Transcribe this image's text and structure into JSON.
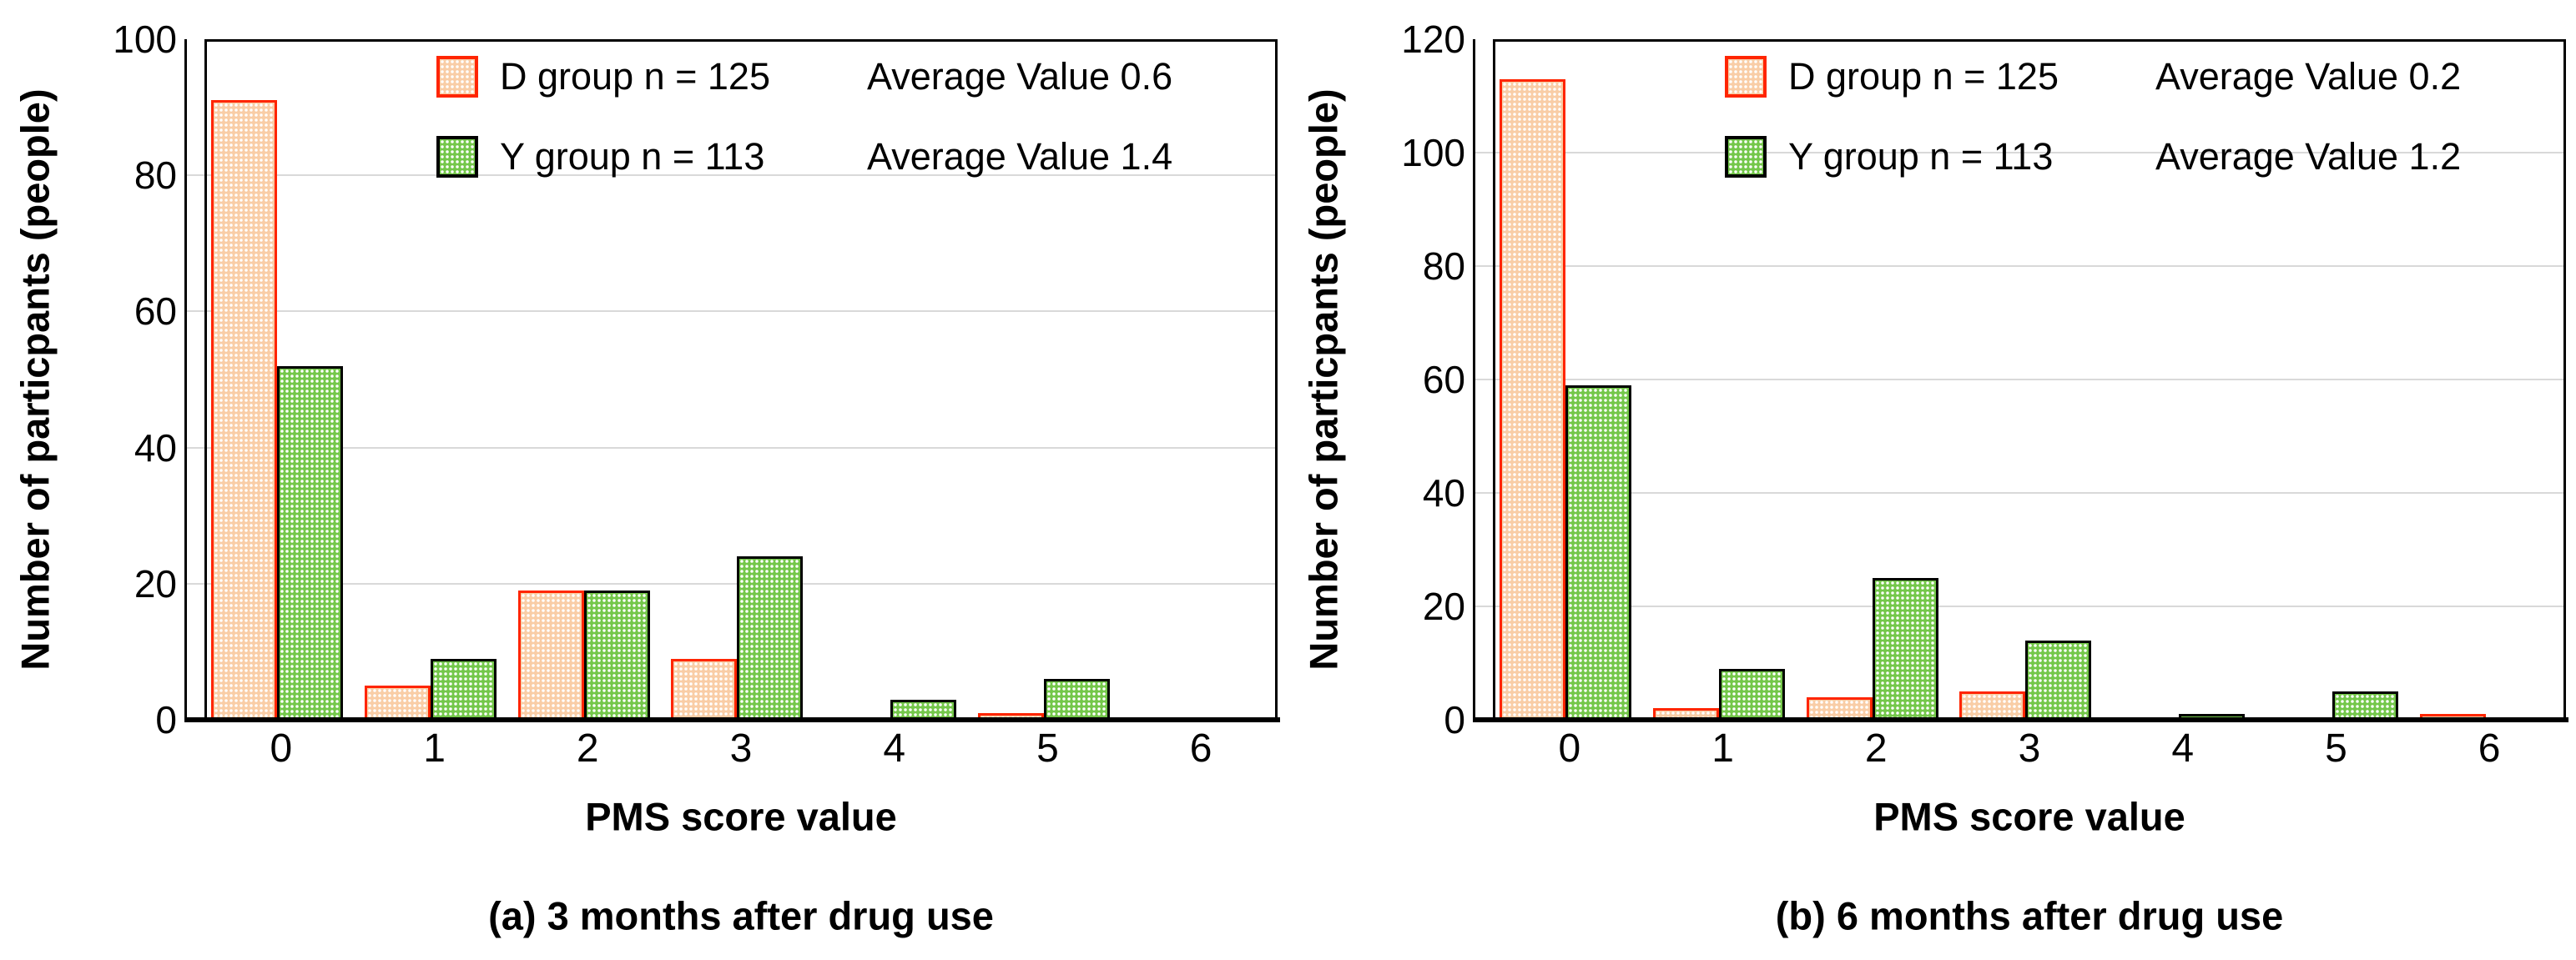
{
  "colors": {
    "d_fill": "#f9cda6",
    "d_stroke": "#ff2500",
    "y_fill": "#74c74a",
    "y_stroke": "#000000",
    "gridline": "#d9d9d9",
    "axis": "#000000",
    "background": "#ffffff"
  },
  "chart_data": [
    {
      "type": "bar",
      "caption": "(a) 3 months after drug use",
      "xlabel": "PMS score value",
      "ylabel": "Number of particpants (people)",
      "categories": [
        "0",
        "1",
        "2",
        "3",
        "4",
        "5",
        "6"
      ],
      "ylim": [
        0,
        100
      ],
      "yticks": [
        0,
        20,
        40,
        60,
        80,
        100
      ],
      "grid": "horizontal-light-gray",
      "legend_position": "inside-top",
      "series": [
        {
          "key": "d-group",
          "name": "D group n = 125",
          "annotation": "Average Value 0.6",
          "values": [
            91,
            5,
            19,
            9,
            0,
            1,
            0
          ],
          "fill": "#f9cda6",
          "stroke": "#ff2500",
          "pattern": "white-dots"
        },
        {
          "key": "y-group",
          "name": "Y group n = 113",
          "annotation": "Average Value 1.4",
          "values": [
            52,
            9,
            19,
            24,
            3,
            6,
            0
          ],
          "fill": "#74c74a",
          "stroke": "#000000",
          "pattern": "white-dots"
        }
      ]
    },
    {
      "type": "bar",
      "caption": "(b) 6 months after drug use",
      "xlabel": "PMS score value",
      "ylabel": "Number of particpants (people)",
      "categories": [
        "0",
        "1",
        "2",
        "3",
        "4",
        "5",
        "6"
      ],
      "ylim": [
        0,
        120
      ],
      "yticks": [
        0,
        20,
        40,
        60,
        80,
        100,
        120
      ],
      "grid": "horizontal-light-gray",
      "legend_position": "inside-top",
      "series": [
        {
          "key": "d-group",
          "name": "D group n = 125",
          "annotation": "Average Value 0.2",
          "values": [
            113,
            2,
            4,
            5,
            0,
            0,
            1
          ],
          "fill": "#f9cda6",
          "stroke": "#ff2500",
          "pattern": "white-dots"
        },
        {
          "key": "y-group",
          "name": "Y group n = 113",
          "annotation": "Average Value 1.2",
          "values": [
            59,
            9,
            25,
            14,
            1,
            5,
            0
          ],
          "fill": "#74c74a",
          "stroke": "#000000",
          "pattern": "white-dots"
        }
      ]
    }
  ]
}
